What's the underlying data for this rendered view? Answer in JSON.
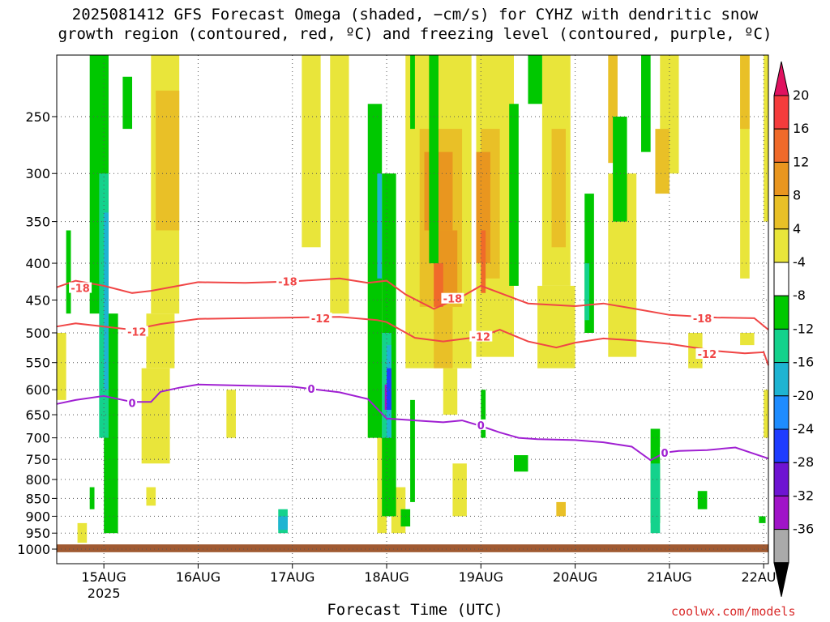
{
  "title_line1": "2025081412 GFS Forecast Omega (shaded, −cm/s) for CYHZ with dendritic snow",
  "title_line2": "growth region (contoured, red, ºC) and freezing level (contoured, purple, ºC)",
  "xaxis_title": "Forecast Time (UTC)",
  "credit": "coolwx.com/models",
  "chart_data": {
    "type": "heatmap",
    "title": "2025081412 GFS Forecast Omega (shaded, −cm/s) for CYHZ with dendritic snow growth region (contoured, red, ºC) and freezing level (contoured, purple, ºC)",
    "xlabel": "Forecast Time (UTC)",
    "ylabel": "",
    "x_ticks": [
      "15AUG\n2025",
      "16AUG",
      "17AUG",
      "18AUG",
      "19AUG",
      "20AUG",
      "21AUG",
      "22AUG"
    ],
    "x_tick_days": [
      15,
      16,
      17,
      18,
      19,
      20,
      21,
      22
    ],
    "xlim": [
      14.5,
      22.05
    ],
    "y_ticks": [
      250,
      300,
      350,
      400,
      450,
      500,
      550,
      600,
      650,
      700,
      750,
      800,
      850,
      900,
      950,
      1000
    ],
    "ylim": [
      200,
      1010
    ],
    "y_scale": "log-pressure",
    "grid": true,
    "colorbar": {
      "labels": [
        "20",
        "16",
        "12",
        "8",
        "4",
        "-4",
        "-8",
        "-12",
        "-16",
        "-20",
        "-24",
        "-28",
        "-32",
        "-36"
      ],
      "colors": [
        "#e0125f",
        "#f53c3c",
        "#f06a2a",
        "#e9961f",
        "#e9c027",
        "#e9e53a",
        "#ffffff",
        "#00c800",
        "#14d28c",
        "#1eb4d2",
        "#1e8cff",
        "#1e3cff",
        "#6e14d2",
        "#a014c8",
        "#aaaaaa",
        "#000000"
      ]
    },
    "series": [
      {
        "color": "#f04646",
        "label": "-18",
        "points": [
          [
            14.5,
            432
          ],
          [
            14.7,
            423
          ],
          [
            15.0,
            430
          ],
          [
            15.3,
            440
          ],
          [
            15.5,
            437
          ],
          [
            16.0,
            425
          ],
          [
            16.5,
            426
          ],
          [
            17.0,
            424
          ],
          [
            17.5,
            420
          ],
          [
            17.8,
            426
          ],
          [
            18.0,
            423
          ],
          [
            18.2,
            442
          ],
          [
            18.5,
            463
          ],
          [
            18.8,
            445
          ],
          [
            19.0,
            430
          ],
          [
            19.5,
            455
          ],
          [
            20.0,
            459
          ],
          [
            20.3,
            455
          ],
          [
            20.6,
            462
          ],
          [
            21.0,
            472
          ],
          [
            21.5,
            476
          ],
          [
            21.9,
            477
          ],
          [
            22.05,
            495
          ]
        ]
      },
      {
        "color": "#f04646",
        "label": "-12",
        "points": [
          [
            14.5,
            490
          ],
          [
            14.7,
            485
          ],
          [
            15.0,
            490
          ],
          [
            15.3,
            495
          ],
          [
            15.6,
            486
          ],
          [
            16.0,
            478
          ],
          [
            16.5,
            477
          ],
          [
            17.0,
            476
          ],
          [
            17.5,
            475
          ],
          [
            17.9,
            480
          ],
          [
            18.0,
            483
          ],
          [
            18.3,
            508
          ],
          [
            18.6,
            514
          ],
          [
            19.0,
            506
          ],
          [
            19.2,
            495
          ],
          [
            19.5,
            514
          ],
          [
            19.8,
            524
          ],
          [
            20.0,
            516
          ],
          [
            20.3,
            509
          ],
          [
            20.6,
            512
          ],
          [
            21.0,
            518
          ],
          [
            21.5,
            530
          ],
          [
            21.8,
            534
          ],
          [
            22.0,
            532
          ],
          [
            22.05,
            555
          ]
        ]
      },
      {
        "color": "#a020d2",
        "label": "0",
        "points": [
          [
            14.5,
            628
          ],
          [
            14.7,
            620
          ],
          [
            15.0,
            612
          ],
          [
            15.3,
            624
          ],
          [
            15.5,
            624
          ],
          [
            15.6,
            604
          ],
          [
            15.8,
            596
          ],
          [
            16.0,
            590
          ],
          [
            16.5,
            592
          ],
          [
            17.0,
            594
          ],
          [
            17.5,
            605
          ],
          [
            17.8,
            618
          ],
          [
            18.0,
            658
          ],
          [
            18.3,
            662
          ],
          [
            18.6,
            666
          ],
          [
            18.8,
            662
          ],
          [
            19.0,
            674
          ],
          [
            19.2,
            688
          ],
          [
            19.4,
            700
          ],
          [
            19.6,
            703
          ],
          [
            20.0,
            705
          ],
          [
            20.3,
            710
          ],
          [
            20.6,
            720
          ],
          [
            20.8,
            752
          ],
          [
            20.95,
            734
          ],
          [
            21.1,
            730
          ],
          [
            21.4,
            728
          ],
          [
            21.7,
            722
          ],
          [
            22.05,
            748
          ]
        ]
      }
    ],
    "contour_labels": [
      {
        "text": "-18",
        "x": 14.75,
        "y": 433
      },
      {
        "text": "-18",
        "x": 16.95,
        "y": 424
      },
      {
        "text": "-18",
        "x": 18.7,
        "y": 448
      },
      {
        "text": "-18",
        "x": 21.35,
        "y": 477
      },
      {
        "text": "-12",
        "x": 15.35,
        "y": 498
      },
      {
        "text": "-12",
        "x": 17.3,
        "y": 477
      },
      {
        "text": "-12",
        "x": 19.0,
        "y": 506
      },
      {
        "text": "-12",
        "x": 21.4,
        "y": 535
      },
      {
        "text": "0",
        "x": 15.3,
        "y": 626
      },
      {
        "text": "0",
        "x": 17.2,
        "y": 598
      },
      {
        "text": "0",
        "x": 19.0,
        "y": 672
      },
      {
        "text": "0",
        "x": 20.95,
        "y": 734
      }
    ],
    "omega_regions": [
      {
        "color": "#e9e53a",
        "rects": [
          [
            15.5,
            200,
            15.8,
            470
          ],
          [
            15.45,
            470,
            15.75,
            560
          ],
          [
            15.4,
            560,
            15.7,
            760
          ],
          [
            15.45,
            820,
            15.55,
            870
          ],
          [
            16.3,
            600,
            16.4,
            700
          ],
          [
            17.1,
            200,
            17.3,
            380
          ],
          [
            17.4,
            200,
            17.6,
            470
          ],
          [
            17.8,
            400,
            17.95,
            700
          ],
          [
            17.9,
            700,
            18.0,
            950
          ],
          [
            18.05,
            820,
            18.2,
            950
          ],
          [
            18.2,
            200,
            18.9,
            560
          ],
          [
            18.6,
            560,
            18.75,
            650
          ],
          [
            18.7,
            760,
            18.85,
            900
          ],
          [
            18.95,
            200,
            19.35,
            540
          ],
          [
            19.65,
            200,
            19.95,
            430
          ],
          [
            19.6,
            430,
            20.0,
            560
          ],
          [
            20.35,
            300,
            20.65,
            540
          ],
          [
            20.9,
            200,
            21.1,
            300
          ],
          [
            21.2,
            500,
            21.35,
            560
          ],
          [
            21.75,
            200,
            21.85,
            420
          ],
          [
            21.75,
            500,
            21.9,
            520
          ],
          [
            22.0,
            200,
            22.05,
            350
          ],
          [
            22.0,
            600,
            22.05,
            700
          ],
          [
            14.5,
            500,
            14.6,
            620
          ],
          [
            14.72,
            920,
            14.82,
            980
          ]
        ]
      },
      {
        "color": "#e9c027",
        "rects": [
          [
            15.55,
            230,
            15.8,
            360
          ],
          [
            18.35,
            260,
            18.8,
            460
          ],
          [
            18.5,
            460,
            18.7,
            560
          ],
          [
            19.0,
            260,
            19.2,
            420
          ],
          [
            19.75,
            260,
            19.9,
            380
          ],
          [
            20.35,
            200,
            20.45,
            290
          ],
          [
            20.85,
            260,
            21.0,
            320
          ],
          [
            21.75,
            200,
            21.85,
            260
          ],
          [
            19.8,
            860,
            19.9,
            900
          ]
        ]
      },
      {
        "color": "#e9961f",
        "rects": [
          [
            18.4,
            280,
            18.7,
            360
          ],
          [
            18.55,
            360,
            18.75,
            440
          ],
          [
            18.95,
            280,
            19.1,
            400
          ]
        ]
      },
      {
        "color": "#f06a2a",
        "rects": [
          [
            18.5,
            400,
            18.6,
            460
          ],
          [
            19.0,
            360,
            19.05,
            440
          ]
        ]
      },
      {
        "color": "#00c800",
        "rects": [
          [
            14.6,
            360,
            14.65,
            470
          ],
          [
            14.85,
            200,
            15.05,
            470
          ],
          [
            15.0,
            470,
            15.15,
            950
          ],
          [
            14.85,
            820,
            14.9,
            880
          ],
          [
            15.2,
            220,
            15.3,
            260
          ],
          [
            17.8,
            240,
            17.95,
            700
          ],
          [
            17.95,
            300,
            18.1,
            900
          ],
          [
            18.25,
            620,
            18.3,
            860
          ],
          [
            18.15,
            880,
            18.25,
            930
          ],
          [
            18.25,
            200,
            18.3,
            260
          ],
          [
            18.45,
            200,
            18.55,
            400
          ],
          [
            19.0,
            600,
            19.05,
            700
          ],
          [
            19.3,
            240,
            19.4,
            430
          ],
          [
            19.5,
            200,
            19.65,
            240
          ],
          [
            20.1,
            320,
            20.2,
            500
          ],
          [
            20.4,
            250,
            20.55,
            350
          ],
          [
            20.7,
            200,
            20.8,
            280
          ],
          [
            20.8,
            680,
            20.9,
            920
          ],
          [
            21.3,
            830,
            21.4,
            880
          ],
          [
            19.35,
            740,
            19.5,
            780
          ],
          [
            21.95,
            900,
            22.02,
            920
          ]
        ]
      },
      {
        "color": "#14d28c",
        "rects": [
          [
            14.95,
            300,
            15.05,
            700
          ],
          [
            17.95,
            500,
            18.05,
            700
          ],
          [
            16.85,
            880,
            16.95,
            950
          ],
          [
            20.8,
            760,
            20.9,
            950
          ],
          [
            20.1,
            400,
            20.15,
            480
          ]
        ]
      },
      {
        "color": "#1eb4d2",
        "rects": [
          [
            15.0,
            340,
            15.05,
            600
          ],
          [
            17.9,
            300,
            17.95,
            420
          ],
          [
            18.0,
            520,
            18.05,
            700
          ],
          [
            16.85,
            900,
            16.95,
            940
          ]
        ]
      },
      {
        "color": "#1e3cff",
        "rects": [
          [
            18.0,
            560,
            18.05,
            640
          ]
        ]
      },
      {
        "color": "#a014c8",
        "rects": [
          [
            17.98,
            590,
            18.0,
            640
          ]
        ]
      },
      {
        "color": "#a05a32",
        "rects": [
          [
            14.5,
            985,
            22.05,
            1010
          ]
        ]
      }
    ]
  }
}
